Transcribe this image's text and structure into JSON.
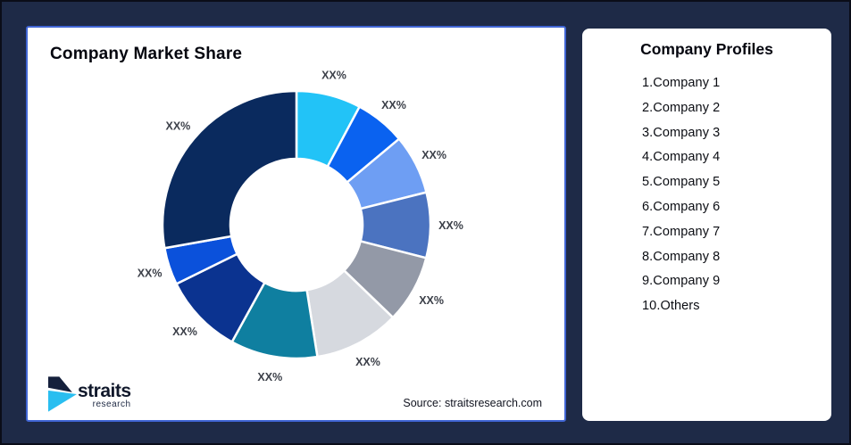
{
  "frame": {
    "background_color": "#1E2A47",
    "border_color": "#0A0D18"
  },
  "chart_card": {
    "title": "Company Market Share",
    "source": "Source: straitsresearch.com",
    "border_color": "#4065D4",
    "logo_name": "straits",
    "logo_sub": "research",
    "logo_colors": {
      "mark_navy": "#15203C",
      "mark_cyan": "#29BEF0"
    }
  },
  "chart_data": {
    "type": "pie",
    "subtype": "donut",
    "title": "Company Market Share",
    "labels": [
      "XX%",
      "XX%",
      "XX%",
      "XX%",
      "XX%",
      "XX%",
      "XX%",
      "XX%",
      "XX%",
      "XX%"
    ],
    "values": [
      7.8,
      6.1,
      7.2,
      7.9,
      8.2,
      10.3,
      10.5,
      9.7,
      4.5,
      27.8
    ],
    "colors": [
      "#22C3F7",
      "#0A62F0",
      "#6E9EF3",
      "#4B73C0",
      "#9399A7",
      "#D6D9DF",
      "#0F7FA0",
      "#0B3390",
      "#0B51DB",
      "#0A2A5E"
    ],
    "start_angle_deg": 0,
    "direction": "clockwise",
    "donut_hole_ratio": 0.49,
    "segment_gap_color": "#FFFFFF",
    "label_color": "#3C4049",
    "legend": "none"
  },
  "profiles_card": {
    "title": "Company Profiles",
    "items": [
      "1.Company 1",
      "2.Company 2",
      "3.Company 3",
      "4.Company 4",
      "5.Company 5",
      "6.Company 6",
      "7.Company 7",
      "8.Company 8",
      "9.Company 9",
      "10.Others"
    ]
  }
}
